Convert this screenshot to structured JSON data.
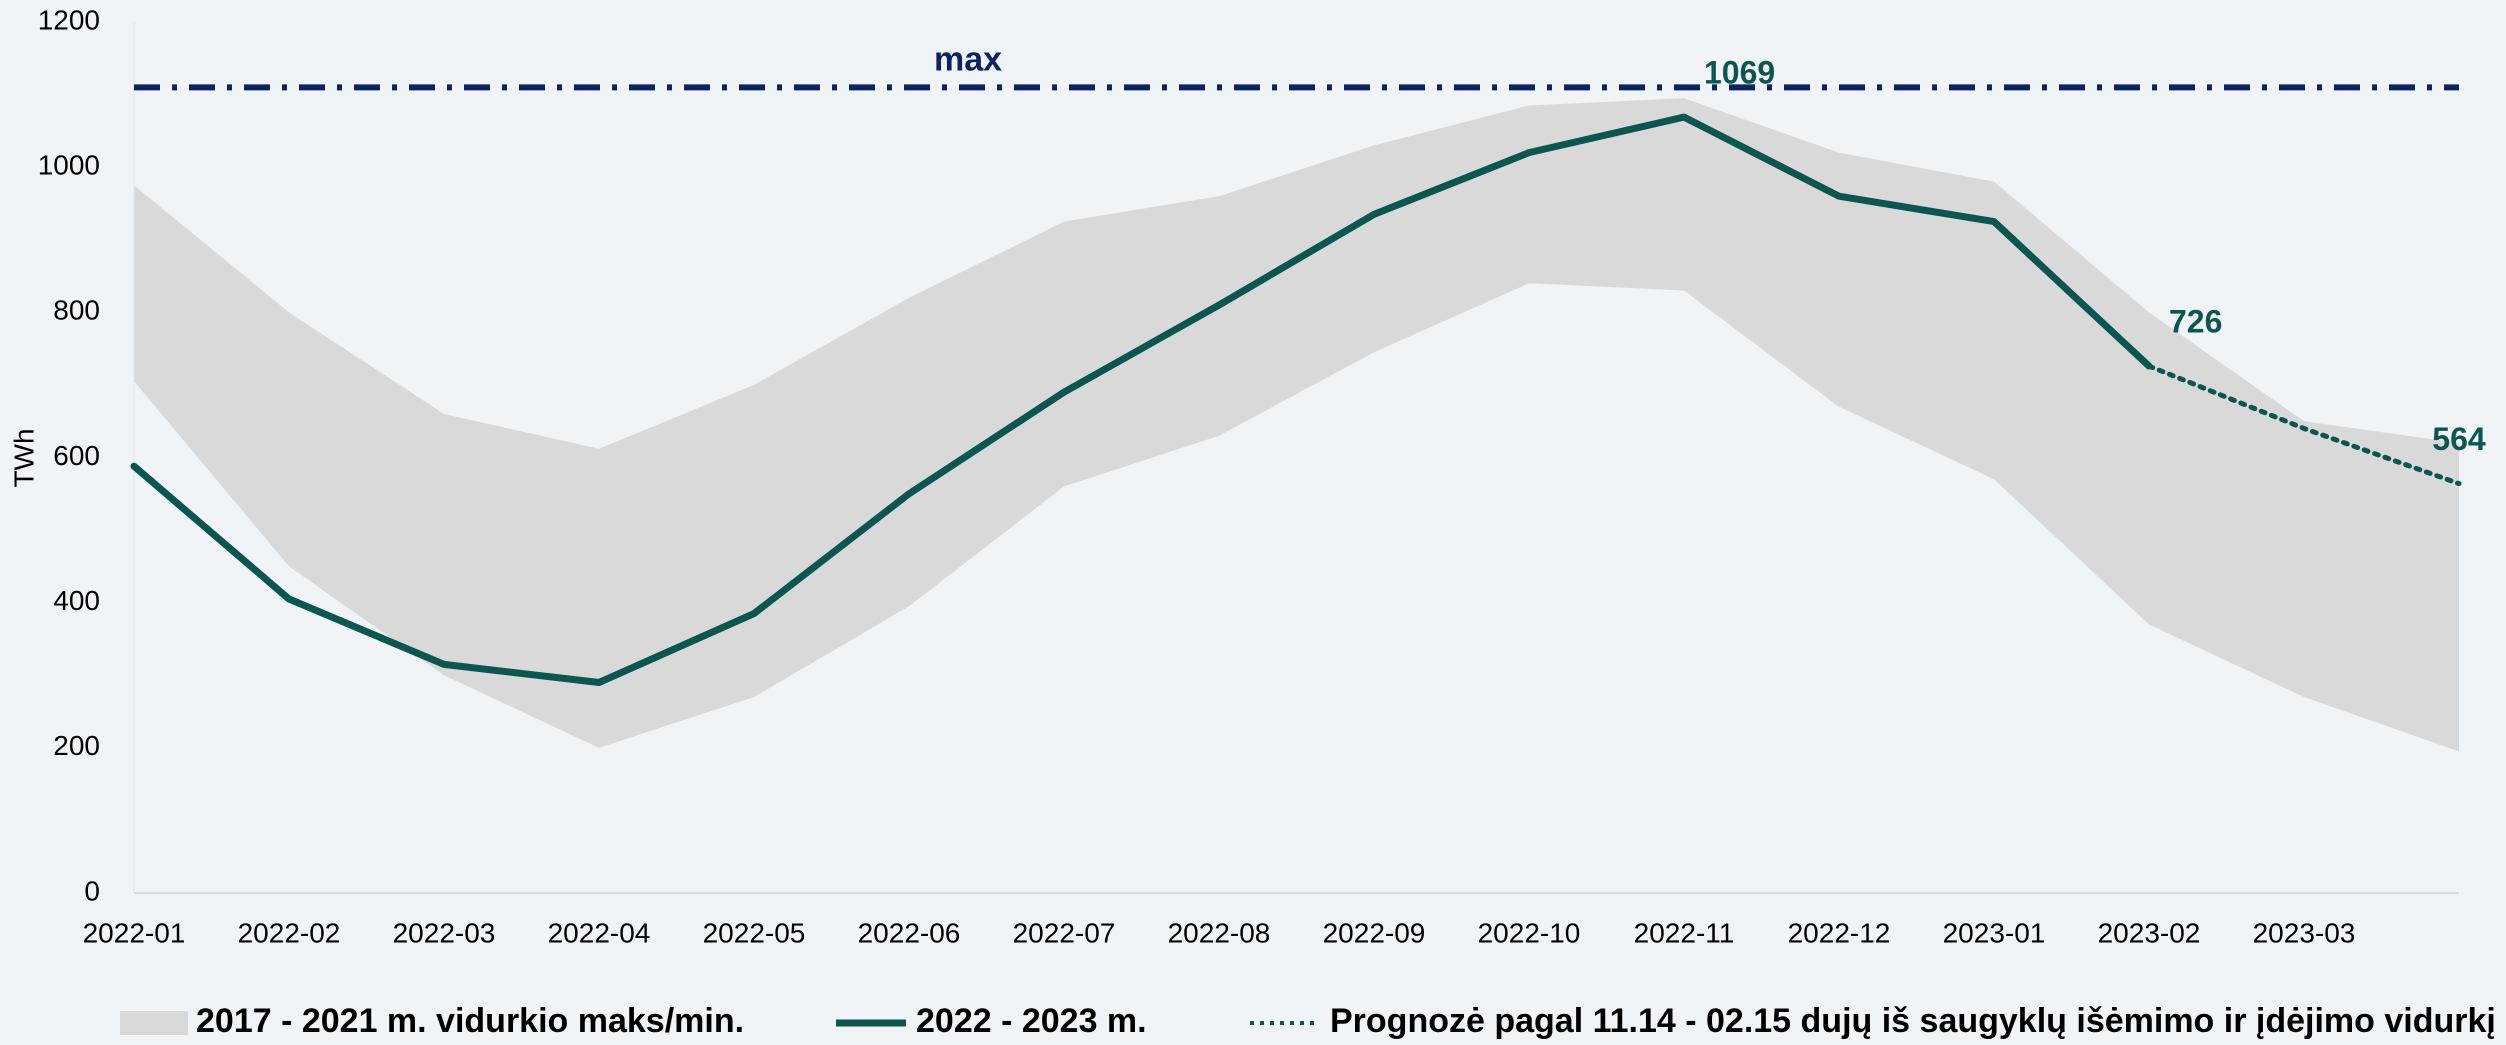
{
  "chart_data": {
    "type": "line",
    "ylabel": "TWh",
    "categories": [
      "2022-01",
      "2022-02",
      "2022-03",
      "2022-04",
      "2022-05",
      "2022-06",
      "2022-07",
      "2022-08",
      "2022-09",
      "2022-10",
      "2022-11",
      "2022-12",
      "2023-01",
      "2023-02",
      "2023-03",
      null
    ],
    "ylim": [
      0,
      1200
    ],
    "yticks": [
      0,
      200,
      400,
      600,
      800,
      1000,
      1200
    ],
    "band": {
      "name": "2017 - 2021 m. vidurkio maks/min.",
      "color": "#d9d9d9",
      "max": [
        975,
        800,
        660,
        612,
        700,
        820,
        925,
        960,
        1030,
        1085,
        1095,
        1020,
        980,
        800,
        650,
        620
      ],
      "min": [
        705,
        450,
        300,
        200,
        270,
        395,
        560,
        630,
        745,
        840,
        830,
        670,
        570,
        370,
        270,
        195
      ]
    },
    "series": [
      {
        "name": "2022 - 2023 m.",
        "color": "#0b5552",
        "style": "solid",
        "values": [
          588,
          405,
          315,
          290,
          385,
          550,
          690,
          810,
          935,
          1020,
          1069,
          960,
          925,
          726,
          null,
          null
        ],
        "value_labels": [
          null,
          null,
          null,
          null,
          null,
          null,
          null,
          null,
          null,
          null,
          "1069",
          null,
          null,
          "726",
          null,
          null
        ]
      },
      {
        "name": "Prognozė pagal 11.14 - 02.15 dujų iš saugyklų išėmimo ir įdėjimo vidurkį",
        "color": "#0b5552",
        "style": "dotted",
        "values": [
          null,
          null,
          null,
          null,
          null,
          null,
          null,
          null,
          null,
          null,
          null,
          null,
          null,
          726,
          640,
          564
        ],
        "value_labels": [
          null,
          null,
          null,
          null,
          null,
          null,
          null,
          null,
          null,
          null,
          null,
          null,
          null,
          null,
          null,
          "564"
        ]
      }
    ],
    "max_line": {
      "label": "max",
      "value": 1110,
      "color": "#0d2260"
    }
  }
}
